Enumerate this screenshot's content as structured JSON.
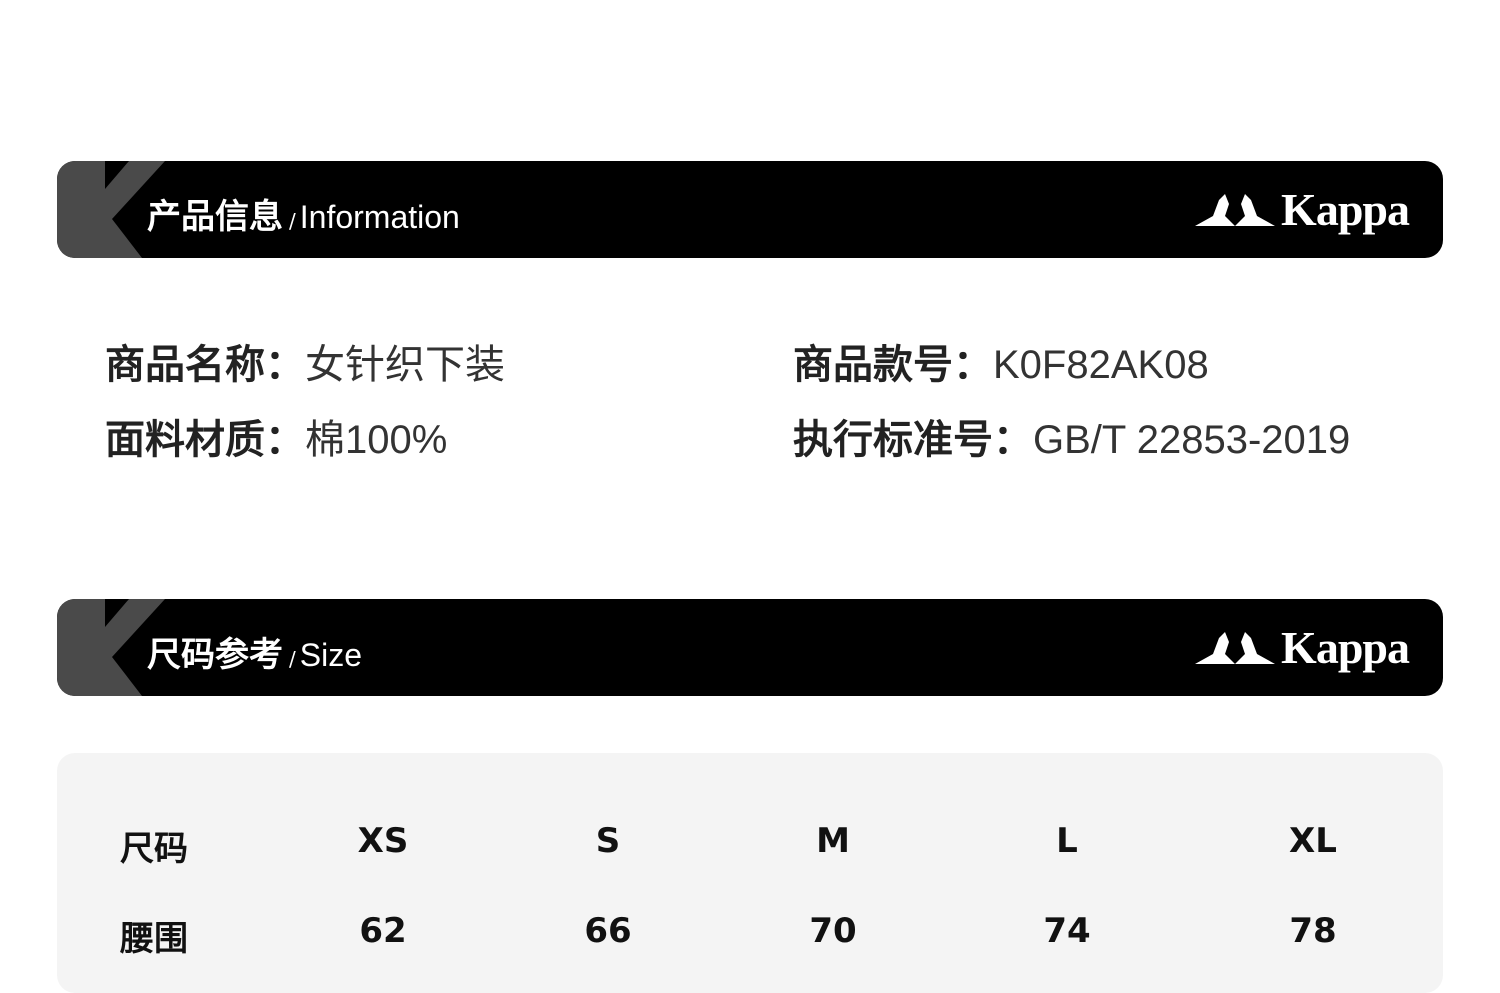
{
  "sections": [
    {
      "title_cn": "产品信息",
      "title_en": "Information",
      "brand": "Kappa"
    },
    {
      "title_cn": "尺码参考",
      "title_en": "Size",
      "brand": "Kappa"
    }
  ],
  "product": {
    "name_label": "商品名称：",
    "name_value": "女针织下装",
    "material_label": "面料材质：",
    "material_value": "棉100%",
    "sku_label": "商品款号：",
    "sku_value": "K0F82AK08",
    "standard_label": "执行标准号：",
    "standard_value": "GB/T 22853-2019"
  },
  "size_table": {
    "header_label": "尺码",
    "sizes": [
      "XS",
      "S",
      "M",
      "L",
      "XL"
    ],
    "rows": [
      {
        "label": "腰围",
        "values": [
          "62",
          "66",
          "70",
          "74",
          "78"
        ]
      }
    ]
  },
  "colors": {
    "bar": "#000000",
    "k_mark": "#4a4a4a",
    "table_bg": "#f4f4f4"
  }
}
